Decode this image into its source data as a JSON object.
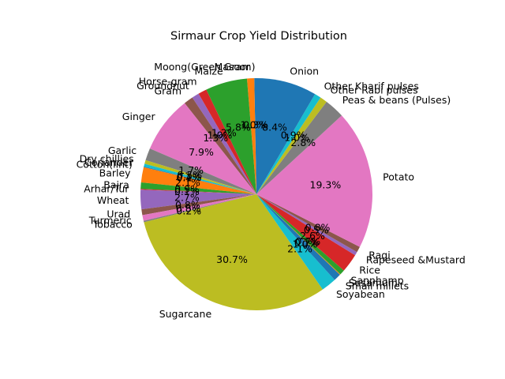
{
  "chart_data": {
    "type": "pie",
    "title": "Sirmaur Crop Yield Distribution",
    "start_angle_deg": 90,
    "direction": "counterclockwise",
    "colors": [
      "#1f77b4",
      "#ff7f0e",
      "#2ca02c",
      "#d62728",
      "#9467bd",
      "#8c564b",
      "#e377c2",
      "#7f7f7f",
      "#bcbd22",
      "#17becf"
    ],
    "slices": [
      {
        "label": "Moong(Green Gram)",
        "value": 0.3,
        "pct_text": "0.3%"
      },
      {
        "label": "Masoor",
        "value": 1.0,
        "pct_text": "1.0%"
      },
      {
        "label": "Maize",
        "value": 5.8,
        "pct_text": "5.8%"
      },
      {
        "label": "Horse-gram",
        "value": 1.2,
        "pct_text": "1.2%"
      },
      {
        "label": "Groundnut",
        "value": 1.0,
        "pct_text": "1.0%"
      },
      {
        "label": "Gram",
        "value": 1.3,
        "pct_text": "1.3%"
      },
      {
        "label": "Ginger",
        "value": 7.9,
        "pct_text": "7.9%"
      },
      {
        "label": "Garlic",
        "value": 1.7,
        "pct_text": "1.7%"
      },
      {
        "label": "Dry chillies",
        "value": 0.5,
        "pct_text": "0.5%"
      },
      {
        "label": "Coriander",
        "value": 0.4,
        "pct_text": "0.4%"
      },
      {
        "label": "Cotton(lint)",
        "value": 0.1,
        "pct_text": "0.1%"
      },
      {
        "label": "Barley",
        "value": 2.1,
        "pct_text": "2.1%"
      },
      {
        "label": "Bajra",
        "value": 0.9,
        "pct_text": "0.9%"
      },
      {
        "label": "Arhar/Tur",
        "value": 0.1,
        "pct_text": "0.1%"
      },
      {
        "label": "Wheat",
        "value": 2.7,
        "pct_text": "2.7%"
      },
      {
        "label": "Urad",
        "value": 0.8,
        "pct_text": "0.8%"
      },
      {
        "label": "Turmeric",
        "value": 0.8,
        "pct_text": "0.8%"
      },
      {
        "label": "Tobacco",
        "value": 0.2,
        "pct_text": "0.2%"
      },
      {
        "label": "Sugarcane",
        "value": 30.7,
        "pct_text": "30.7%"
      },
      {
        "label": "Soyabean",
        "value": 2.1,
        "pct_text": "2.1%"
      },
      {
        "label": "Small millets",
        "value": 1.0,
        "pct_text": "1.0%"
      },
      {
        "label": "Sesamum",
        "value": 0.1,
        "pct_text": "0.1%"
      },
      {
        "label": "Sannhamp",
        "value": 0.7,
        "pct_text": "0.7%"
      },
      {
        "label": "Rice",
        "value": 2.6,
        "pct_text": "2.6%"
      },
      {
        "label": "Rapeseed &Mustard",
        "value": 0.5,
        "pct_text": "0.5%"
      },
      {
        "label": "Ragi",
        "value": 0.8,
        "pct_text": "0.8%"
      },
      {
        "label": "Potato",
        "value": 19.3,
        "pct_text": "19.3%"
      },
      {
        "label": "Peas & beans (Pulses)",
        "value": 2.8,
        "pct_text": "2.8%"
      },
      {
        "label": "Other Rabi pulses",
        "value": 1.0,
        "pct_text": "1.0%"
      },
      {
        "label": "Other Kharif pulses",
        "value": 0.9,
        "pct_text": "0.9%"
      },
      {
        "label": "Onion",
        "value": 8.4,
        "pct_text": "8.4%"
      }
    ]
  }
}
